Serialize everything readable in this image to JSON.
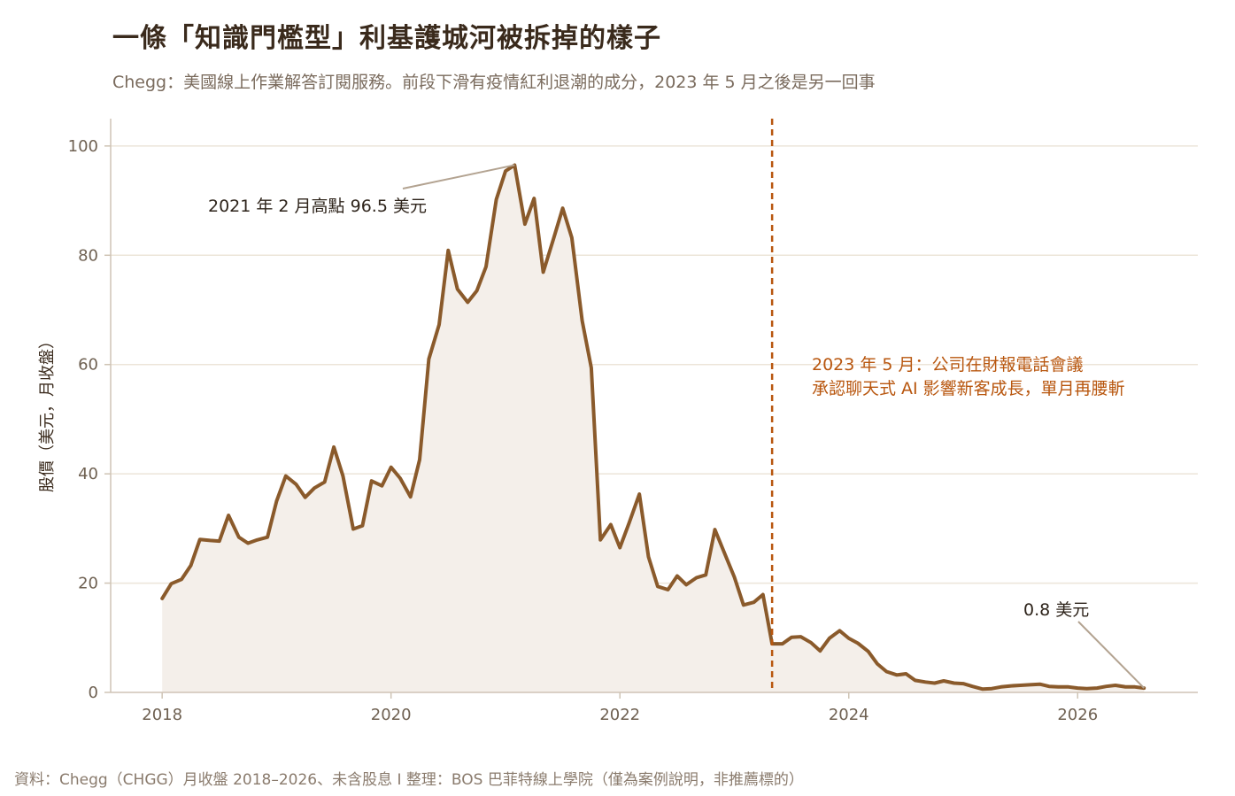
{
  "title": "一條「知識門檻型」利基護城河被拆掉的樣子",
  "subtitle": "Chegg：美國線上作業解答訂閱服務。前段下滑有疫情紅利退潮的成分，2023 年 5 月之後是另一回事",
  "footer": "資料：Chegg（CHGG）月收盤 2018–2026、未含股息 I 整理：BOS 巴菲特線上學院（僅為案例說明，非推薦標的）",
  "colors": {
    "line": "#8a5a2b",
    "fill": "#f4efea",
    "event": "#b8560e",
    "grid": "#ece5d9",
    "pointer": "#b3a391"
  },
  "chart_data": {
    "type": "area",
    "ylabel": "股價（美元，月收盤）",
    "xlim": [
      2017.55,
      2027.05
    ],
    "ylim": [
      0,
      105
    ],
    "x_ticks": [
      2018,
      2020,
      2022,
      2024,
      2026
    ],
    "x_tick_labels": [
      "2018",
      "2020",
      "2022",
      "2024",
      "2026"
    ],
    "y_ticks": [
      0,
      20,
      40,
      60,
      80,
      100
    ],
    "y_tick_labels": [
      "0",
      "20",
      "40",
      "60",
      "80",
      "100"
    ],
    "grid": "horizontal",
    "series": [
      {
        "x": [
          2018.0,
          2018.08,
          2018.17,
          2018.25,
          2018.33,
          2018.42,
          2018.5,
          2018.58,
          2018.67,
          2018.75,
          2018.83,
          2018.92,
          2019.0,
          2019.08,
          2019.17,
          2019.25,
          2019.33,
          2019.42,
          2019.5,
          2019.58,
          2019.67,
          2019.75,
          2019.83,
          2019.92,
          2020.0,
          2020.08,
          2020.17,
          2020.25,
          2020.33,
          2020.42,
          2020.5,
          2020.58,
          2020.67,
          2020.75,
          2020.83,
          2020.92,
          2021.0,
          2021.08,
          2021.17,
          2021.25,
          2021.33,
          2021.42,
          2021.5,
          2021.58,
          2021.67,
          2021.75,
          2021.83,
          2021.92,
          2022.0,
          2022.08,
          2022.17,
          2022.25,
          2022.33,
          2022.42,
          2022.5,
          2022.58,
          2022.67,
          2022.75,
          2022.83,
          2022.92,
          2023.0,
          2023.08,
          2023.17,
          2023.25,
          2023.33,
          2023.42,
          2023.5,
          2023.58,
          2023.67,
          2023.75,
          2023.83,
          2023.92,
          2024.0,
          2024.08,
          2024.17,
          2024.25,
          2024.33,
          2024.42,
          2024.5,
          2024.58,
          2024.67,
          2024.75,
          2024.83,
          2024.92,
          2025.0,
          2025.08,
          2025.17,
          2025.25,
          2025.33,
          2025.42,
          2025.5,
          2025.58,
          2025.67,
          2025.75,
          2025.83,
          2025.92,
          2026.0,
          2026.08,
          2026.17,
          2026.25,
          2026.33,
          2026.42,
          2026.5,
          2026.58
        ],
        "values": [
          17.2,
          19.9,
          20.7,
          23.2,
          28.0,
          27.8,
          27.7,
          32.4,
          28.4,
          27.3,
          27.9,
          28.4,
          35.0,
          39.6,
          38.1,
          35.7,
          37.4,
          38.5,
          44.9,
          39.6,
          29.9,
          30.5,
          38.7,
          37.8,
          41.2,
          39.2,
          35.8,
          42.6,
          61.0,
          67.3,
          80.9,
          73.8,
          71.4,
          73.5,
          77.9,
          90.2,
          95.4,
          96.5,
          85.7,
          90.4,
          76.9,
          83.0,
          88.6,
          83.2,
          68.0,
          59.4,
          27.9,
          30.7,
          26.5,
          31.0,
          36.3,
          24.8,
          19.4,
          18.8,
          21.3,
          19.7,
          21.0,
          21.5,
          29.8,
          25.2,
          21.1,
          16.0,
          16.5,
          17.9,
          8.9,
          8.9,
          10.1,
          10.2,
          9.1,
          7.6,
          9.9,
          11.3,
          9.9,
          9.0,
          7.5,
          5.2,
          3.8,
          3.2,
          3.4,
          2.2,
          1.9,
          1.7,
          2.1,
          1.7,
          1.6,
          1.1,
          0.6,
          0.7,
          1.0,
          1.2,
          1.3,
          1.4,
          1.5,
          1.1,
          1.0,
          1.0,
          0.8,
          0.7,
          0.8,
          1.1,
          1.3,
          1.0,
          1.0,
          0.8
        ]
      }
    ],
    "annotations": [
      {
        "text": "2021 年 2 月高點 96.5 美元",
        "x": 2021.08,
        "y": 96.5
      },
      {
        "text": "0.8 美元",
        "x": 2026.58,
        "y": 0.8
      }
    ],
    "event": {
      "x": 2023.33,
      "lines": [
        "2023 年 5 月：公司在財報電話會議",
        "承認聊天式 AI 影響新客成長，單月再腰斬"
      ]
    }
  }
}
